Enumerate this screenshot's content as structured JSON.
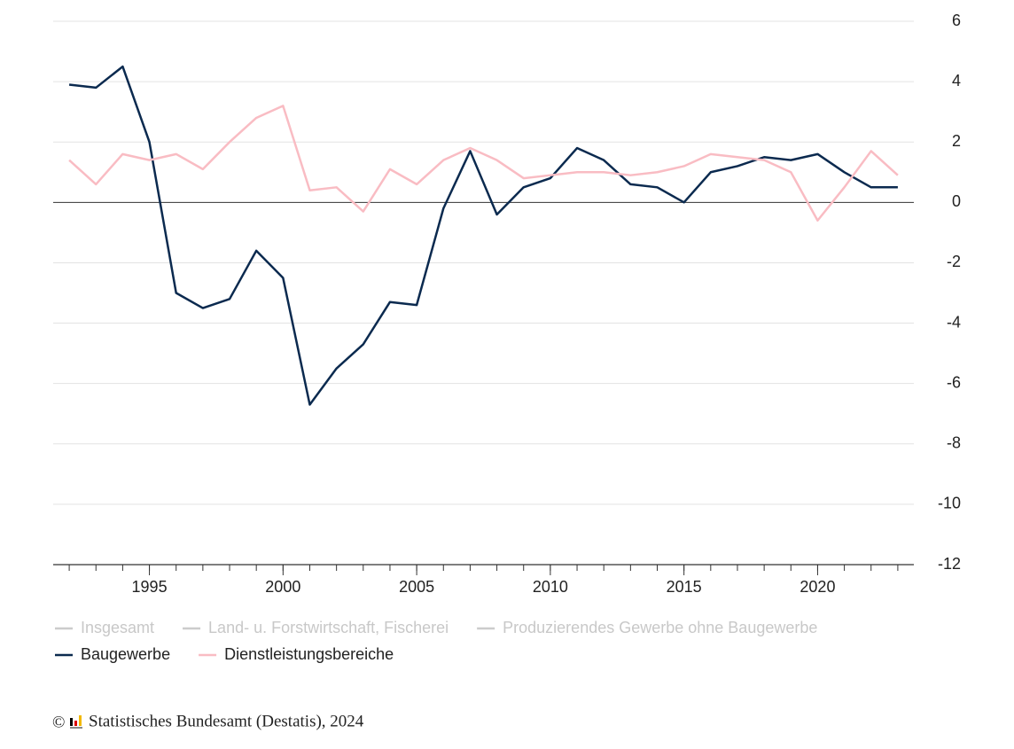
{
  "chart_data": {
    "type": "line",
    "x": [
      1992,
      1993,
      1994,
      1995,
      1996,
      1997,
      1998,
      1999,
      2000,
      2001,
      2002,
      2003,
      2004,
      2005,
      2006,
      2007,
      2008,
      2009,
      2010,
      2011,
      2012,
      2013,
      2014,
      2015,
      2016,
      2017,
      2018,
      2019,
      2020,
      2021,
      2022,
      2023
    ],
    "series": [
      {
        "name": "Baugewerbe",
        "color": "#0b2a4f",
        "values": [
          3.9,
          3.8,
          4.5,
          2.0,
          -3.0,
          -3.5,
          -3.2,
          -1.6,
          -2.5,
          -6.7,
          -5.5,
          -4.7,
          -3.3,
          -3.4,
          -0.2,
          1.7,
          -0.4,
          0.5,
          0.8,
          1.8,
          1.4,
          0.6,
          0.5,
          0.0,
          1.0,
          1.2,
          1.5,
          1.4,
          1.6,
          1.0,
          0.5,
          0.5
        ]
      },
      {
        "name": "Dienstleistungsbereiche",
        "color": "#f9bcc3",
        "values": [
          1.4,
          0.6,
          1.6,
          1.4,
          1.6,
          1.1,
          2.0,
          2.8,
          3.2,
          0.4,
          0.5,
          -0.3,
          1.1,
          0.6,
          1.4,
          1.8,
          1.4,
          0.8,
          0.9,
          1.0,
          1.0,
          0.9,
          1.0,
          1.2,
          1.6,
          1.5,
          1.4,
          1.0,
          -0.6,
          0.5,
          1.7,
          0.9
        ]
      }
    ],
    "inactive_legend": [
      {
        "name": "Insgesamt",
        "color": "#cccccc"
      },
      {
        "name": "Land- u. Forstwirtschaft, Fischerei",
        "color": "#cccccc"
      },
      {
        "name": "Produzierendes Gewerbe ohne Baugewerbe",
        "color": "#cccccc"
      }
    ],
    "xlim": [
      1991.4,
      2023.6
    ],
    "xticks": [
      1995,
      2000,
      2005,
      2010,
      2015,
      2020
    ],
    "ylim": [
      -12,
      6
    ],
    "yticks": [
      6,
      4,
      2,
      0,
      -2,
      -4,
      -6,
      -8,
      -10,
      -12
    ],
    "grid": true,
    "copyright": "©",
    "source": "Statistisches Bundesamt (Destatis), 2024"
  }
}
